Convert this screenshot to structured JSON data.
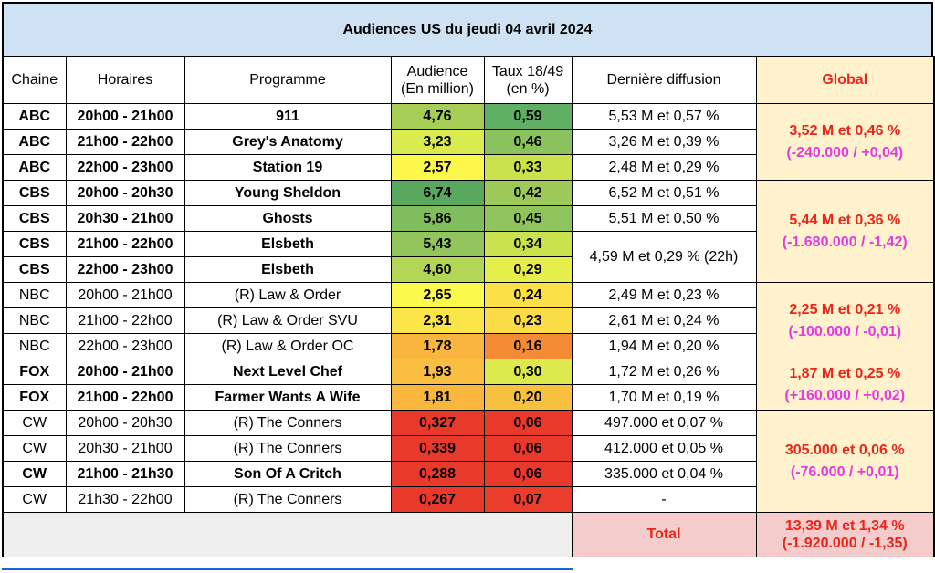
{
  "title": "Audiences US du jeudi 04 avril 2024",
  "headers": {
    "chaine": "Chaine",
    "horaires": "Horaires",
    "programme": "Programme",
    "audience_l1": "Audience",
    "audience_l2": "(En million)",
    "taux_l1": "Taux 18/49",
    "taux_l2": "(en %)",
    "derniere": "Dernière diffusion",
    "global": "Global"
  },
  "rows": [
    {
      "chaine": "ABC",
      "horaires": "20h00 - 21h00",
      "programme": "911",
      "audience": "4,76",
      "taux": "0,59",
      "derniere": "5,53 M et 0,57 %",
      "bold": true,
      "aud_color": "#a6ce56",
      "taux_color": "#5fb062"
    },
    {
      "chaine": "ABC",
      "horaires": "21h00 - 22h00",
      "programme": "Grey's Anatomy",
      "audience": "3,23",
      "taux": "0,46",
      "derniere": "3,26 M et 0,39 %",
      "bold": true,
      "aud_color": "#daeb4d",
      "taux_color": "#8ac25e"
    },
    {
      "chaine": "ABC",
      "horaires": "22h00 - 23h00",
      "programme": "Station 19",
      "audience": "2,57",
      "taux": "0,33",
      "derniere": "2,48 M et 0,29 %",
      "bold": true,
      "aud_color": "#fbf84b",
      "taux_color": "#cbe24f"
    },
    {
      "chaine": "CBS",
      "horaires": "20h00 - 20h30",
      "programme": "Young Sheldon",
      "audience": "6,74",
      "taux": "0,42",
      "derniere": "6,52 M et 0,51 %",
      "bold": true,
      "aud_color": "#5aa85e",
      "taux_color": "#9ec95a"
    },
    {
      "chaine": "CBS",
      "horaires": "20h30 - 21h00",
      "programme": "Ghosts",
      "audience": "5,86",
      "taux": "0,45",
      "derniere": "5,51 M et 0,50 %",
      "bold": true,
      "aud_color": "#80bd5c",
      "taux_color": "#8fc45d"
    },
    {
      "chaine": "CBS",
      "horaires": "21h00 - 22h00",
      "programme": "Elsbeth",
      "audience": "5,43",
      "taux": "0,34",
      "derniere": "4,59 M et 0,29 % (22h)",
      "bold": true,
      "aud_color": "#92c55b",
      "taux_color": "#cbe24f"
    },
    {
      "chaine": "CBS",
      "horaires": "22h00 - 23h00",
      "programme": "Elsbeth",
      "audience": "4,60",
      "taux": "0,29",
      "derniere": "",
      "bold": true,
      "aud_color": "#b3d655",
      "taux_color": "#e6ee4b"
    },
    {
      "chaine": "NBC",
      "horaires": "20h00 - 21h00",
      "programme": "(R) Law & Order",
      "audience": "2,65",
      "taux": "0,24",
      "derniere": "2,49 M et 0,23 %",
      "bold": false,
      "aud_color": "#fbf94c",
      "taux_color": "#fbe147"
    },
    {
      "chaine": "NBC",
      "horaires": "21h00 - 22h00",
      "programme": "(R) Law & Order SVU",
      "audience": "2,31",
      "taux": "0,23",
      "derniere": "2,61 M et 0,24 %",
      "bold": false,
      "aud_color": "#fbe548",
      "taux_color": "#fbdc46"
    },
    {
      "chaine": "NBC",
      "horaires": "22h00 - 23h00",
      "programme": "(R) Law & Order OC",
      "audience": "1,78",
      "taux": "0,16",
      "derniere": "1,94 M et 0,20 %",
      "bold": false,
      "aud_color": "#f9b53e",
      "taux_color": "#f58b35"
    },
    {
      "chaine": "FOX",
      "horaires": "20h00 - 21h00",
      "programme": "Next Level Chef",
      "audience": "1,93",
      "taux": "0,30",
      "derniere": "1,72 M et 0,26 %",
      "bold": true,
      "aud_color": "#fabe40",
      "taux_color": "#dcea4c"
    },
    {
      "chaine": "FOX",
      "horaires": "21h00 - 22h00",
      "programme": "Farmer Wants A Wife",
      "audience": "1,81",
      "taux": "0,20",
      "derniere": "1,70 M et 0,19 %",
      "bold": true,
      "aud_color": "#f9b73e",
      "taux_color": "#f8c03f"
    },
    {
      "chaine": "CW",
      "horaires": "20h00 - 20h30",
      "programme": "(R) The Conners",
      "audience": "0,327",
      "taux": "0,06",
      "derniere": "497.000 et 0,07 %",
      "bold": false,
      "aud_color": "#e9392a",
      "taux_color": "#e9392a"
    },
    {
      "chaine": "CW",
      "horaires": "20h30 - 21h00",
      "programme": "(R) The Conners",
      "audience": "0,339",
      "taux": "0,06",
      "derniere": "412.000 et 0,05 %",
      "bold": false,
      "aud_color": "#e9392a",
      "taux_color": "#e9392a"
    },
    {
      "chaine": "CW",
      "horaires": "21h00 - 21h30",
      "programme": "Son Of A Critch",
      "audience": "0,288",
      "taux": "0,06",
      "derniere": "335.000 et 0,04 %",
      "bold": true,
      "aud_color": "#e9392a",
      "taux_color": "#e9392a"
    },
    {
      "chaine": "CW",
      "horaires": "21h30 - 22h00",
      "programme": "(R) The Conners",
      "audience": "0,267",
      "taux": "0,07",
      "derniere": "-",
      "bold": false,
      "aud_color": "#e9392a",
      "taux_color": "#eb3d2b"
    }
  ],
  "globals": [
    {
      "main": "3,52 M et 0,46 %",
      "sub": "(-240.000 / +0,04)"
    },
    {
      "main": "5,44 M et 0,36 %",
      "sub": "(-1.680.000 / -1,42)"
    },
    {
      "main": "2,25 M et 0,21 %",
      "sub": "(-100.000 / -0,01)"
    },
    {
      "main": "1,87 M et 0,25 %",
      "sub": "(+160.000 / +0,02)"
    },
    {
      "main": "305.000 et 0,06 %",
      "sub": "(-76.000 / +0,01)"
    }
  ],
  "total": {
    "label": "Total",
    "main": "13,39 M et 1,34 %",
    "sub": "(-1.920.000 / -1,35)"
  }
}
